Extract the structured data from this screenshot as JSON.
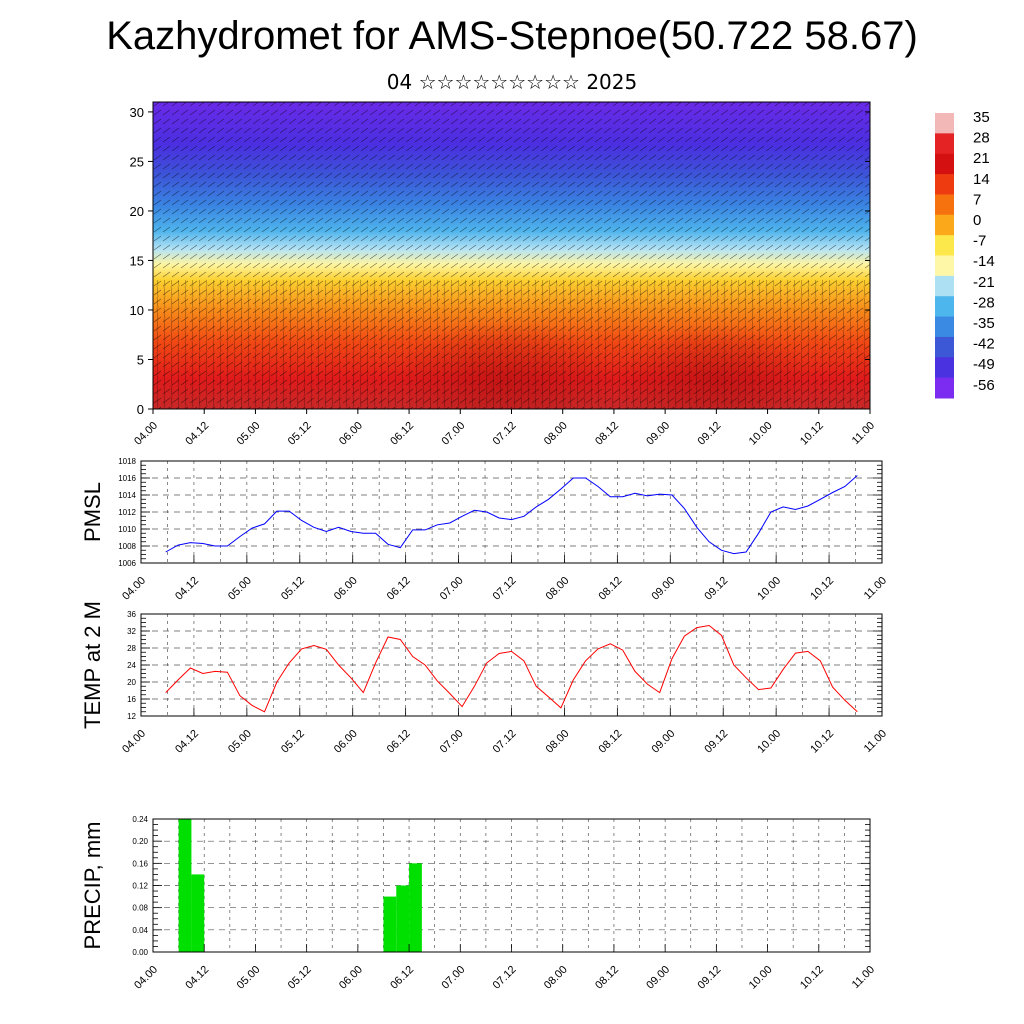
{
  "title": "Kazhydromet for AMS-Stepnoe(50.722 58.67)",
  "subtitle": "04 ☆☆☆☆☆☆☆☆☆ 2025",
  "time_labels": [
    "04.00",
    "04.12",
    "05.00",
    "05.12",
    "06.00",
    "06.12",
    "07.00",
    "07.12",
    "08.00",
    "08.12",
    "09.00",
    "09.12",
    "10.00",
    "10.12",
    "11.00"
  ],
  "colors": {
    "pmsl_line": "#0000ff",
    "temp_line": "#ff0000",
    "precip_bar": "#00e000"
  },
  "chart_data": [
    {
      "type": "heatmap",
      "y_ticks": [
        0,
        5,
        10,
        15,
        20,
        25,
        30
      ],
      "ylim": [
        0,
        31
      ],
      "x_ticks": [
        "04.00",
        "04.12",
        "05.00",
        "05.12",
        "06.00",
        "06.12",
        "07.00",
        "07.12",
        "08.00",
        "08.12",
        "09.00",
        "09.12",
        "10.00",
        "10.12",
        "11.00"
      ],
      "colorbar_labels": [
        "35",
        "28",
        "21",
        "14",
        "7",
        "0",
        "-7",
        "-14",
        "-21",
        "-28",
        "-35",
        "-42",
        "-49",
        "-56"
      ],
      "colorbar_colors": [
        "#f2b8b8",
        "#e42424",
        "#d51010",
        "#ee3b10",
        "#f6720f",
        "#fba81b",
        "#fde84c",
        "#fff7a8",
        "#aee0f3",
        "#4db6ec",
        "#3a8ae4",
        "#3c58d6",
        "#4a32e0",
        "#7c2cf0"
      ],
      "overlay": "wind-streamlines"
    },
    {
      "type": "line",
      "ylabel": "PMSL",
      "ylim": [
        1006,
        1018
      ],
      "y_ticks": [
        1006,
        1008,
        1010,
        1012,
        1014,
        1016,
        1018
      ],
      "x_ticks": [
        "04.00",
        "04.12",
        "05.00",
        "05.12",
        "06.00",
        "06.12",
        "07.00",
        "07.12",
        "08.00",
        "08.12",
        "09.00",
        "09.12",
        "10.00",
        "10.12",
        "11.00"
      ],
      "x": [
        0,
        3,
        6,
        9,
        12,
        15,
        18,
        21,
        24,
        27,
        30,
        33,
        36,
        39,
        42,
        45,
        48,
        51,
        54,
        57,
        60,
        63,
        66,
        69,
        72,
        75,
        78,
        81,
        84,
        87,
        90,
        93,
        96,
        99,
        102,
        105,
        108,
        111,
        114,
        117,
        120,
        123,
        126,
        129,
        132,
        135,
        138,
        141,
        144,
        147,
        150,
        153,
        156,
        159,
        162,
        165,
        168
      ],
      "series": [
        {
          "values": [
            1007.3,
            1008.1,
            1008.4,
            1008.3,
            1008.0,
            1008.0,
            1009.1,
            1010.1,
            1010.6,
            1012.1,
            1012.1,
            1011.0,
            1010.2,
            1009.7,
            1010.2,
            1009.7,
            1009.5,
            1009.5,
            1008.2,
            1007.8,
            1009.9,
            1009.9,
            1010.5,
            1010.7,
            1011.5,
            1012.2,
            1012.0,
            1011.3,
            1011.1,
            1011.5,
            1012.6,
            1013.5,
            1014.7,
            1016.0,
            1016.0,
            1015.0,
            1013.8,
            1013.8,
            1014.2,
            1013.9,
            1014.1,
            1014.0,
            1012.4,
            1010.2,
            1008.5,
            1007.5,
            1007.1,
            1007.3,
            1009.5,
            1012.0,
            1012.6,
            1012.3,
            1012.7,
            1013.5,
            1014.3,
            1015.0,
            1016.3
          ]
        }
      ]
    },
    {
      "type": "line",
      "ylabel": "TEMP at 2 M",
      "ylim": [
        12,
        36
      ],
      "y_ticks": [
        12,
        16,
        20,
        24,
        28,
        32,
        36
      ],
      "x_ticks": [
        "04.00",
        "04.12",
        "05.00",
        "05.12",
        "06.00",
        "06.12",
        "07.00",
        "07.12",
        "08.00",
        "08.12",
        "09.00",
        "09.12",
        "10.00",
        "10.12",
        "11.00"
      ],
      "x": [
        0,
        3,
        6,
        9,
        12,
        15,
        18,
        21,
        24,
        27,
        30,
        33,
        36,
        39,
        42,
        45,
        48,
        51,
        54,
        57,
        60,
        63,
        66,
        69,
        72,
        75,
        78,
        81,
        84,
        87,
        90,
        93,
        96,
        99,
        102,
        105,
        108,
        111,
        114,
        117,
        120,
        123,
        126,
        129,
        132,
        135,
        138,
        141,
        144,
        147,
        150,
        153,
        156,
        159,
        162,
        165,
        168
      ],
      "series": [
        {
          "values": [
            17.5,
            20.5,
            23.3,
            22.0,
            22.5,
            22.3,
            16.8,
            14.5,
            13.0,
            20.0,
            24.5,
            27.8,
            28.6,
            27.7,
            24.0,
            21.0,
            17.5,
            24.5,
            30.6,
            30.0,
            26.0,
            24.0,
            20.2,
            17.3,
            14.2,
            19.0,
            24.5,
            26.7,
            27.2,
            25.0,
            19.0,
            16.5,
            13.9,
            20.5,
            25.0,
            27.8,
            29.0,
            27.5,
            22.5,
            19.5,
            17.5,
            25.5,
            30.8,
            32.8,
            33.3,
            31.0,
            24.0,
            21.0,
            18.2,
            18.6,
            23.0,
            26.8,
            27.2,
            25.0,
            18.8,
            15.7,
            13.0
          ]
        }
      ]
    },
    {
      "type": "bar",
      "ylabel": "PRECIP, mm",
      "ylim": [
        0,
        0.24
      ],
      "y_ticks": [
        "0.00",
        "0.04",
        "0.08",
        "0.12",
        "0.16",
        "0.20",
        "0.24"
      ],
      "x_ticks": [
        "04.00",
        "04.12",
        "05.00",
        "05.12",
        "06.00",
        "06.12",
        "07.00",
        "07.12",
        "08.00",
        "08.12",
        "09.00",
        "09.12",
        "10.00",
        "10.12",
        "11.00"
      ],
      "x": [
        6,
        9,
        54,
        57,
        60
      ],
      "values": [
        0.24,
        0.14,
        0.1,
        0.12,
        0.16
      ]
    }
  ]
}
